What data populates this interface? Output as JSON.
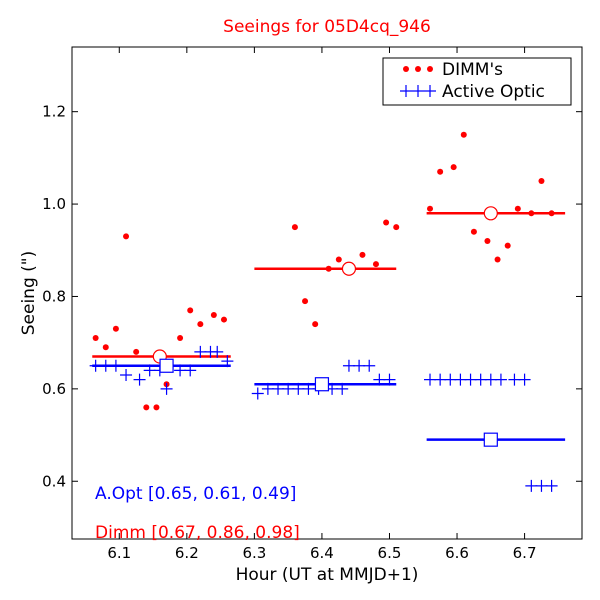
{
  "chart_data": {
    "type": "scatter",
    "title": "Seeings for 05D4cq_946",
    "xlabel": "Hour (UT at MMJD+1)",
    "ylabel": "Seeing (\")",
    "xlim": [
      6.03,
      6.785
    ],
    "ylim": [
      0.275,
      1.34
    ],
    "x_ticks": [
      6.1,
      6.2,
      6.3,
      6.4,
      6.5,
      6.6,
      6.7
    ],
    "x_tick_labels": [
      "6.1",
      "6.2",
      "6.3",
      "6.4",
      "6.5",
      "6.6",
      "6.7"
    ],
    "y_ticks": [
      0.4,
      0.6,
      0.8,
      1.0,
      1.2
    ],
    "y_tick_labels": [
      "0.4",
      "0.6",
      "0.8",
      "1.0",
      "1.2"
    ],
    "grid": false,
    "legend_position": "top-right",
    "series": [
      {
        "name": "DIMM's",
        "color": "#ff0000",
        "marker": "dot",
        "points": [
          [
            6.065,
            0.71
          ],
          [
            6.08,
            0.69
          ],
          [
            6.095,
            0.73
          ],
          [
            6.11,
            0.93
          ],
          [
            6.125,
            0.68
          ],
          [
            6.14,
            0.56
          ],
          [
            6.155,
            0.56
          ],
          [
            6.17,
            0.61
          ],
          [
            6.19,
            0.71
          ],
          [
            6.205,
            0.77
          ],
          [
            6.22,
            0.74
          ],
          [
            6.24,
            0.76
          ],
          [
            6.255,
            0.75
          ],
          [
            6.36,
            0.95
          ],
          [
            6.375,
            0.79
          ],
          [
            6.39,
            0.74
          ],
          [
            6.41,
            0.86
          ],
          [
            6.425,
            0.88
          ],
          [
            6.46,
            0.89
          ],
          [
            6.48,
            0.87
          ],
          [
            6.495,
            0.96
          ],
          [
            6.51,
            0.95
          ],
          [
            6.56,
            0.99
          ],
          [
            6.575,
            1.07
          ],
          [
            6.595,
            1.08
          ],
          [
            6.61,
            1.15
          ],
          [
            6.625,
            0.94
          ],
          [
            6.645,
            0.92
          ],
          [
            6.66,
            0.88
          ],
          [
            6.675,
            0.91
          ],
          [
            6.69,
            0.99
          ],
          [
            6.71,
            0.98
          ],
          [
            6.725,
            1.05
          ],
          [
            6.74,
            0.98
          ]
        ]
      },
      {
        "name": "Active Optic",
        "color": "#0000ff",
        "marker": "plus",
        "points": [
          [
            6.065,
            0.65
          ],
          [
            6.08,
            0.65
          ],
          [
            6.095,
            0.65
          ],
          [
            6.11,
            0.63
          ],
          [
            6.13,
            0.62
          ],
          [
            6.145,
            0.64
          ],
          [
            6.16,
            0.64
          ],
          [
            6.17,
            0.6
          ],
          [
            6.19,
            0.64
          ],
          [
            6.205,
            0.64
          ],
          [
            6.22,
            0.68
          ],
          [
            6.235,
            0.68
          ],
          [
            6.245,
            0.68
          ],
          [
            6.26,
            0.66
          ],
          [
            6.305,
            0.59
          ],
          [
            6.32,
            0.6
          ],
          [
            6.335,
            0.6
          ],
          [
            6.35,
            0.6
          ],
          [
            6.365,
            0.6
          ],
          [
            6.38,
            0.6
          ],
          [
            6.395,
            0.6
          ],
          [
            6.415,
            0.6
          ],
          [
            6.43,
            0.6
          ],
          [
            6.44,
            0.65
          ],
          [
            6.455,
            0.65
          ],
          [
            6.47,
            0.65
          ],
          [
            6.485,
            0.62
          ],
          [
            6.5,
            0.62
          ],
          [
            6.56,
            0.62
          ],
          [
            6.575,
            0.62
          ],
          [
            6.59,
            0.62
          ],
          [
            6.605,
            0.62
          ],
          [
            6.62,
            0.62
          ],
          [
            6.635,
            0.62
          ],
          [
            6.65,
            0.62
          ],
          [
            6.665,
            0.62
          ],
          [
            6.685,
            0.62
          ],
          [
            6.7,
            0.62
          ],
          [
            6.71,
            0.39
          ],
          [
            6.725,
            0.39
          ],
          [
            6.74,
            0.39
          ]
        ]
      }
    ],
    "medians": [
      {
        "series": "DIMM's",
        "color": "#ff0000",
        "marker": "circle",
        "x0": 6.06,
        "x1": 6.265,
        "y": 0.67,
        "mx": 6.16
      },
      {
        "series": "DIMM's",
        "color": "#ff0000",
        "marker": "circle",
        "x0": 6.3,
        "x1": 6.51,
        "y": 0.86,
        "mx": 6.44
      },
      {
        "series": "DIMM's",
        "color": "#ff0000",
        "marker": "circle",
        "x0": 6.555,
        "x1": 6.76,
        "y": 0.98,
        "mx": 6.65
      },
      {
        "series": "Active Optic",
        "color": "#0000ff",
        "marker": "square",
        "x0": 6.06,
        "x1": 6.265,
        "y": 0.65,
        "mx": 6.17
      },
      {
        "series": "Active Optic",
        "color": "#0000ff",
        "marker": "square",
        "x0": 6.3,
        "x1": 6.51,
        "y": 0.61,
        "mx": 6.4
      },
      {
        "series": "Active Optic",
        "color": "#0000ff",
        "marker": "square",
        "x0": 6.555,
        "x1": 6.76,
        "y": 0.49,
        "mx": 6.65
      }
    ],
    "annotations": [
      {
        "text": "A.Opt [0.65, 0.61, 0.49]",
        "color": "#0000ff"
      },
      {
        "text": "Dimm [0.67, 0.86, 0.98]",
        "color": "#ff0000"
      }
    ]
  }
}
